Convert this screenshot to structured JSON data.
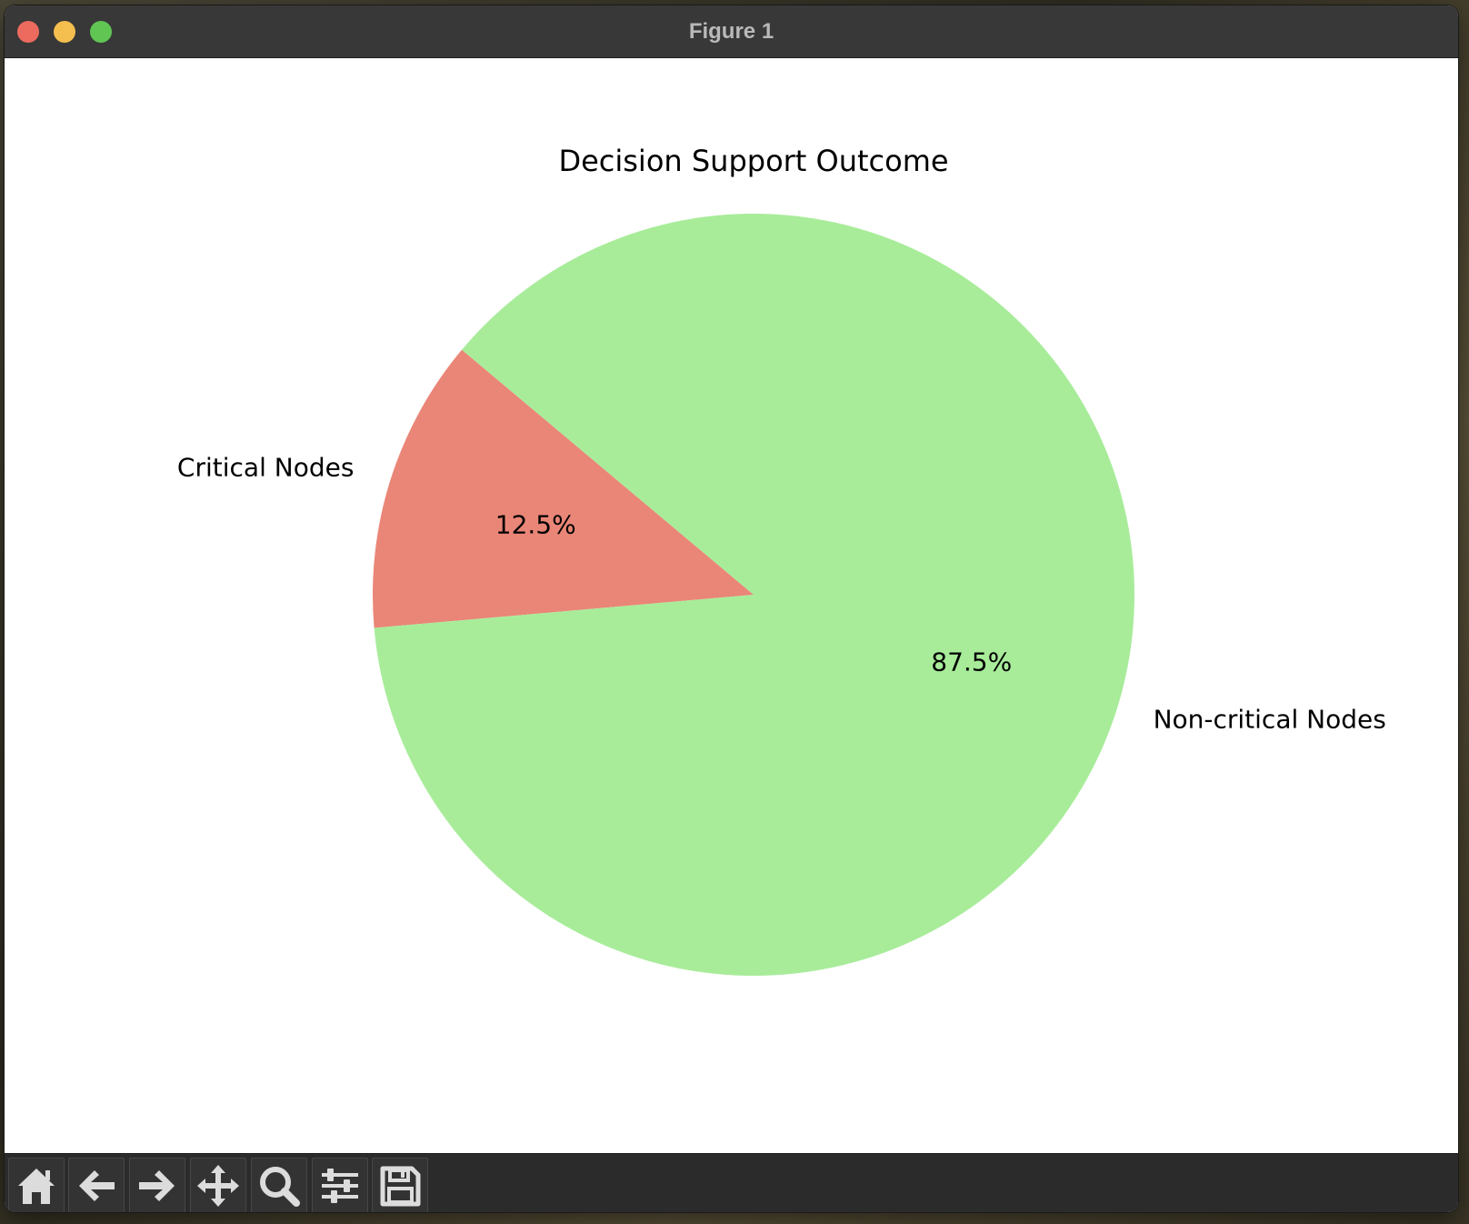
{
  "window": {
    "title": "Figure 1"
  },
  "toolbar": {
    "buttons": [
      {
        "name": "home-button",
        "icon": "home-icon"
      },
      {
        "name": "back-button",
        "icon": "arrow-left-icon"
      },
      {
        "name": "forward-button",
        "icon": "arrow-right-icon"
      },
      {
        "name": "pan-button",
        "icon": "move-icon"
      },
      {
        "name": "zoom-button",
        "icon": "magnifier-icon"
      },
      {
        "name": "configure-subplots-button",
        "icon": "sliders-icon"
      },
      {
        "name": "save-button",
        "icon": "floppy-disk-icon"
      }
    ]
  },
  "chart_data": {
    "type": "pie",
    "title": "Decision Support Outcome",
    "start_angle_deg": 140,
    "direction": "counterclockwise",
    "slices": [
      {
        "label": "Critical Nodes",
        "value": 12.5,
        "pct_label": "12.5%",
        "color": "#ea8677"
      },
      {
        "label": "Non-critical Nodes",
        "value": 87.5,
        "pct_label": "87.5%",
        "color": "#a8ec9a"
      }
    ],
    "legend": "none",
    "grid": false
  }
}
